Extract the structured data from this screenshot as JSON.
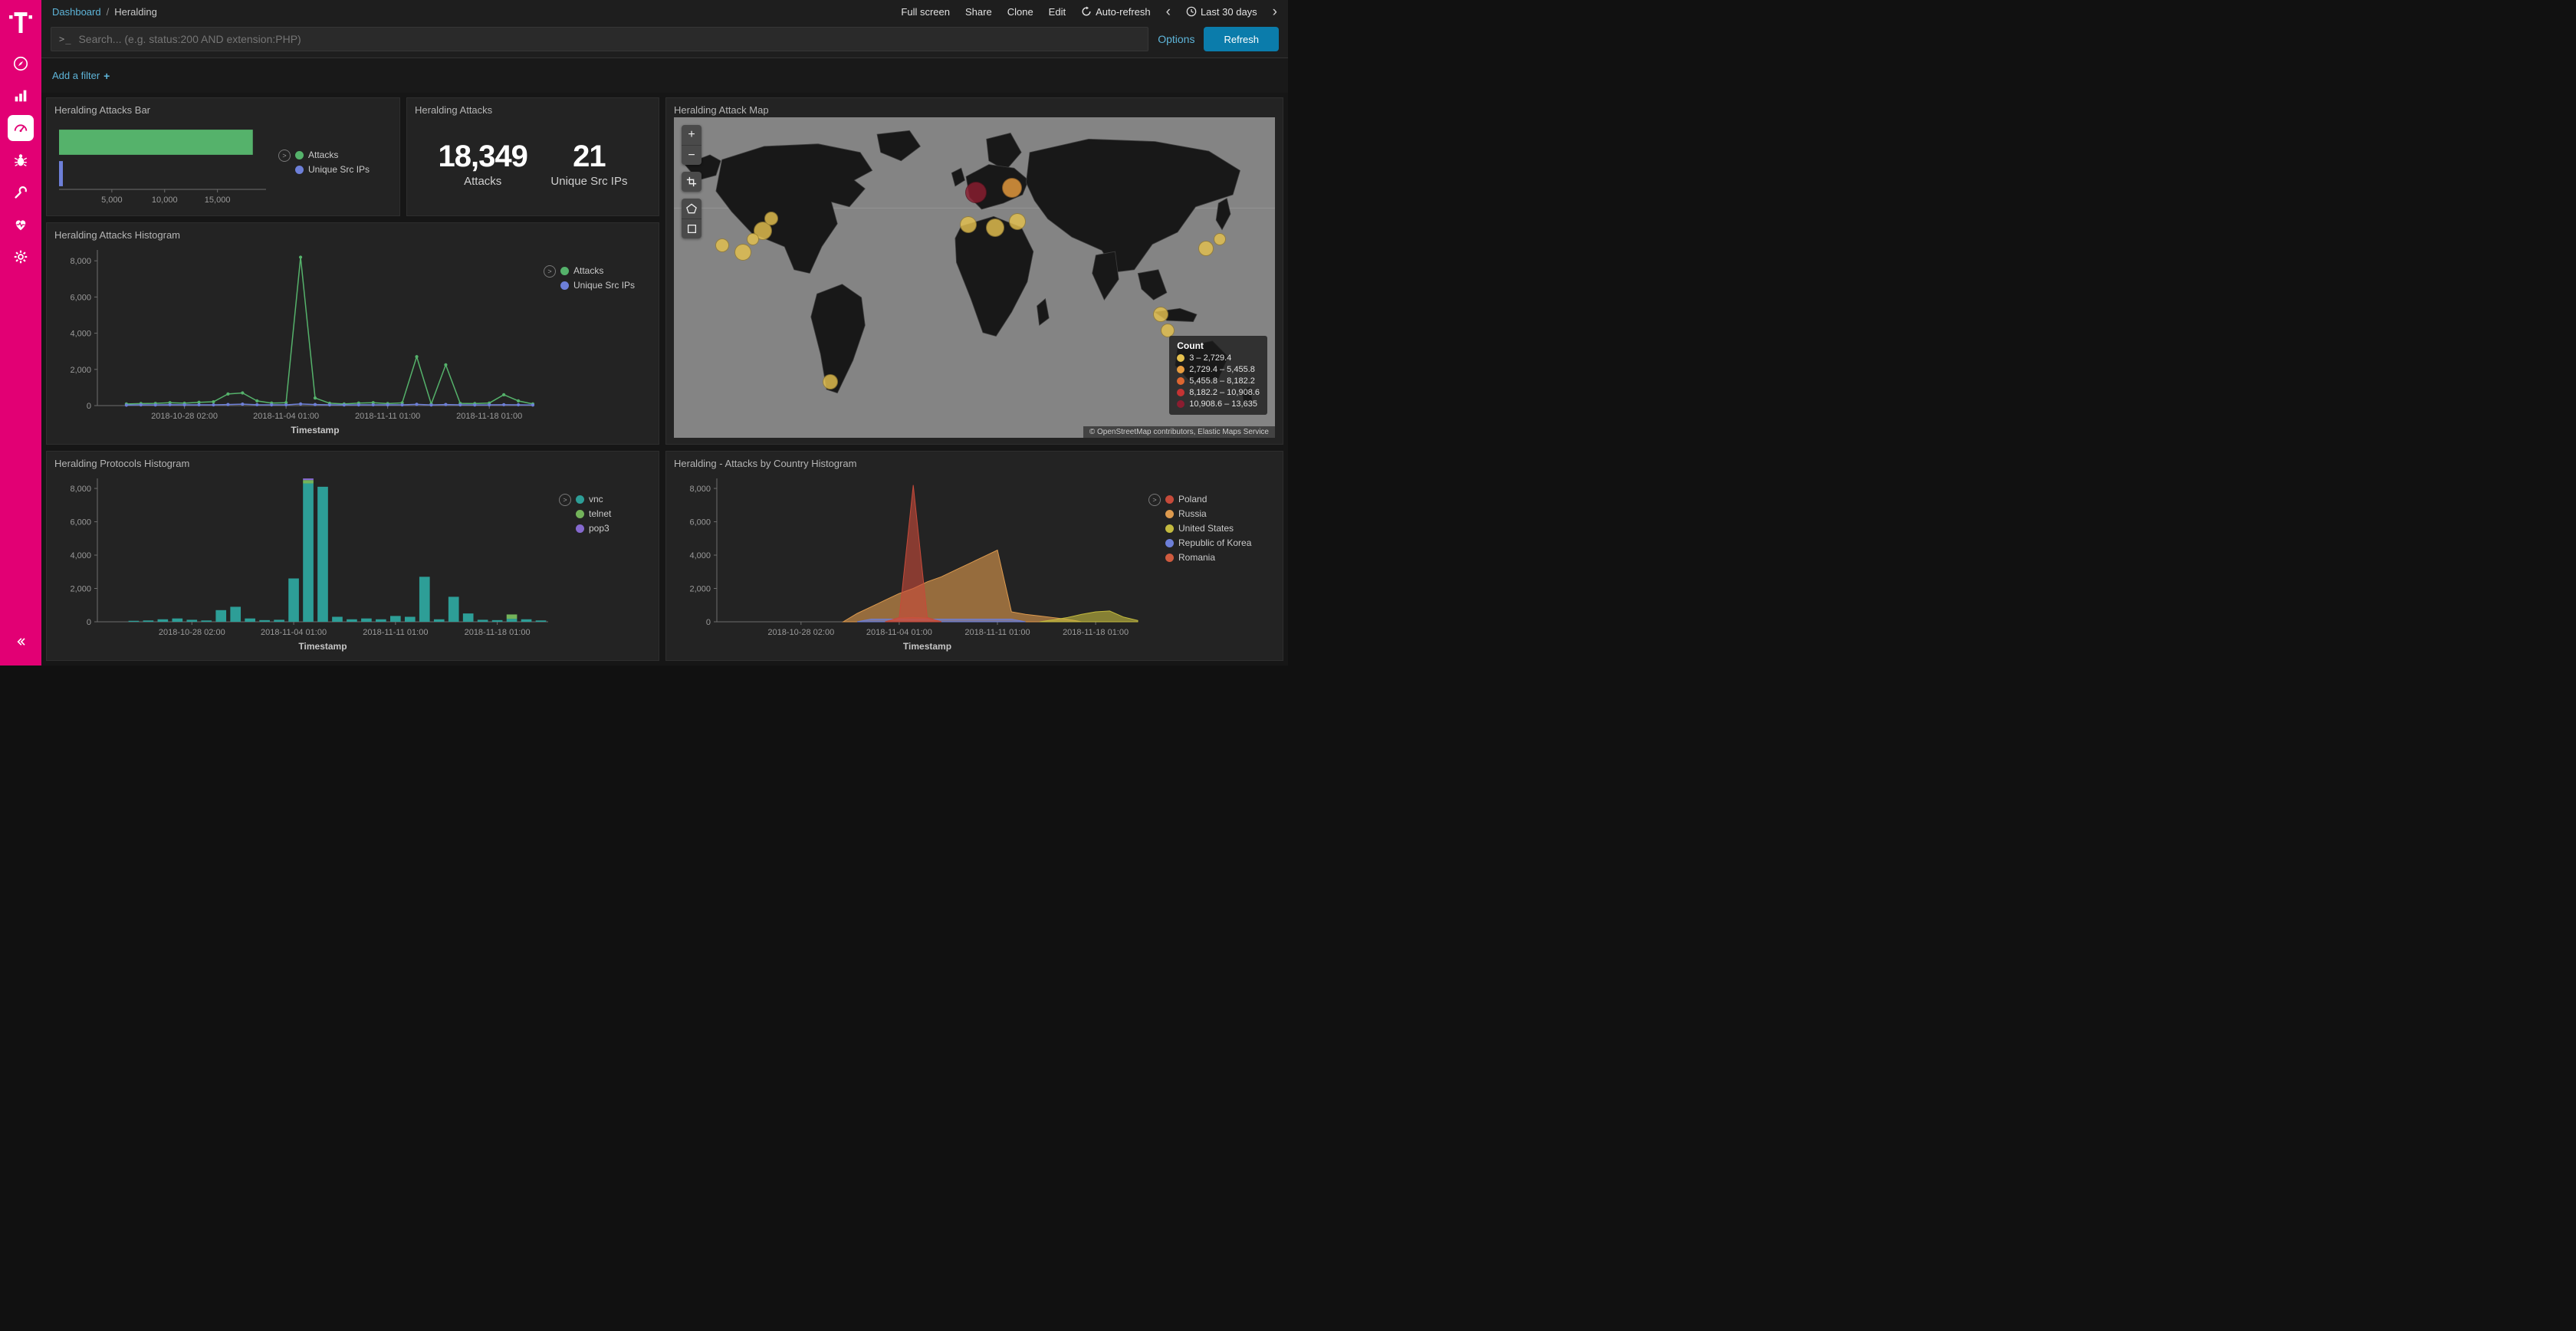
{
  "theme": {
    "brand": "#e20074",
    "link": "#5eb5d9",
    "button": "#0b7cab",
    "panel_bg": "#232323",
    "page_bg": "#161616"
  },
  "icons": {
    "prompt": ">_",
    "plus": "+",
    "minus": "−",
    "chevron_left": "‹",
    "chevron_right": "›",
    "breadcrumb_separator": "/",
    "legend_toggle": ">"
  },
  "sidebar": {
    "items": [
      "telekom-logo",
      "discover",
      "visualize",
      "dashboard",
      "t-pot",
      "dev-tools",
      "monitoring",
      "management",
      "collapse"
    ],
    "active_item": "dashboard"
  },
  "navbar": {
    "breadcrumb": {
      "root": "Dashboard",
      "current": "Heralding"
    },
    "actions": {
      "full_screen": "Full screen",
      "share": "Share",
      "clone": "Clone",
      "edit": "Edit",
      "auto_refresh": "Auto-refresh",
      "time_range": "Last 30 days"
    }
  },
  "search_bar": {
    "placeholder": "Search... (e.g. status:200 AND extension:PHP)",
    "options": "Options",
    "refresh": "Refresh"
  },
  "filter_bar": {
    "add_filter": "Add a filter"
  },
  "panels": {
    "attacks_bar": {
      "title": "Heralding Attacks Bar"
    },
    "attacks_metric": {
      "title": "Heralding Attacks",
      "metrics": [
        {
          "value": "18,349",
          "label": "Attacks"
        },
        {
          "value": "21",
          "label": "Unique Src IPs"
        }
      ]
    },
    "attack_map": {
      "title": "Heralding Attack Map",
      "legend_title": "Count",
      "legend": [
        {
          "label": "3 – 2,729.4",
          "color": "#e5c14f"
        },
        {
          "label": "2,729.4 – 5,455.8",
          "color": "#e89c3f"
        },
        {
          "label": "5,455.8 – 8,182.2",
          "color": "#dd6631"
        },
        {
          "label": "8,182.2 – 10,908.6",
          "color": "#c43333"
        },
        {
          "label": "10,908.6 – 13,635",
          "color": "#8b1d30"
        }
      ],
      "attribution": "© OpenStreetMap contributors, Elastic Maps Service",
      "markers": [
        {
          "x": 8.0,
          "y": 40.0,
          "r": 9,
          "color": "#e5c14f"
        },
        {
          "x": 11.5,
          "y": 42.0,
          "r": 11,
          "color": "#e5c14f"
        },
        {
          "x": 14.8,
          "y": 35.5,
          "r": 12,
          "color": "#e5c14f"
        },
        {
          "x": 16.2,
          "y": 31.5,
          "r": 9,
          "color": "#e5c14f"
        },
        {
          "x": 13.2,
          "y": 38.0,
          "r": 8,
          "color": "#e5c14f"
        },
        {
          "x": 26.0,
          "y": 82.5,
          "r": 10,
          "color": "#e5c14f"
        },
        {
          "x": 49.0,
          "y": 33.5,
          "r": 11,
          "color": "#e5c14f"
        },
        {
          "x": 53.5,
          "y": 34.5,
          "r": 12,
          "color": "#e5c14f"
        },
        {
          "x": 57.2,
          "y": 32.5,
          "r": 11,
          "color": "#e5c14f"
        },
        {
          "x": 50.2,
          "y": 23.5,
          "r": 14,
          "color": "#8b1d30"
        },
        {
          "x": 56.3,
          "y": 22.0,
          "r": 13,
          "color": "#e89c3f"
        },
        {
          "x": 88.5,
          "y": 41.0,
          "r": 10,
          "color": "#e5c14f"
        },
        {
          "x": 90.8,
          "y": 38.0,
          "r": 8,
          "color": "#e5c14f"
        },
        {
          "x": 81.0,
          "y": 61.5,
          "r": 10,
          "color": "#e5c14f"
        },
        {
          "x": 82.2,
          "y": 66.5,
          "r": 9,
          "color": "#e5c14f"
        }
      ]
    },
    "attacks_histogram": {
      "title": "Heralding Attacks Histogram"
    },
    "protocols_histogram": {
      "title": "Heralding Protocols Histogram"
    },
    "country_histogram": {
      "title": "Heralding - Attacks by Country Histogram"
    }
  },
  "chart_data": [
    {
      "id": "attacks_bar",
      "type": "hbar",
      "title": "Heralding Attacks Bar",
      "categories": [
        "Attacks",
        "Unique Src IPs"
      ],
      "values": [
        18349,
        21
      ],
      "colors": [
        "#55b26b",
        "#6d7fd8"
      ],
      "xticks": [
        5000,
        10000,
        15000
      ],
      "xlim": [
        0,
        19600
      ],
      "legend": [
        {
          "label": "Attacks",
          "color": "#55b26b"
        },
        {
          "label": "Unique Src IPs",
          "color": "#6d7fd8"
        }
      ],
      "legend_position": "right"
    },
    {
      "id": "attacks_histogram",
      "type": "line",
      "title": "Heralding Attacks Histogram",
      "xlabel": "Timestamp",
      "ylim": [
        0,
        8600
      ],
      "yticks": [
        0,
        2000,
        4000,
        6000,
        8000
      ],
      "x": [
        "2018-10-22",
        "2018-10-23",
        "2018-10-24",
        "2018-10-25",
        "2018-10-26",
        "2018-10-27",
        "2018-10-28",
        "2018-10-29",
        "2018-10-30",
        "2018-10-31",
        "2018-11-01",
        "2018-11-02",
        "2018-11-03",
        "2018-11-04",
        "2018-11-05",
        "2018-11-06",
        "2018-11-07",
        "2018-11-08",
        "2018-11-09",
        "2018-11-10",
        "2018-11-11",
        "2018-11-12",
        "2018-11-13",
        "2018-11-14",
        "2018-11-15",
        "2018-11-16",
        "2018-11-17",
        "2018-11-18",
        "2018-11-19",
        "2018-11-20",
        "2018-11-21"
      ],
      "xticks": [
        {
          "index": 6,
          "label": "2018-10-28 02:00"
        },
        {
          "index": 13,
          "label": "2018-11-04 01:00"
        },
        {
          "index": 20,
          "label": "2018-11-11 01:00"
        },
        {
          "index": 27,
          "label": "2018-11-18 01:00"
        }
      ],
      "series": [
        {
          "name": "Attacks",
          "color": "#55b26b",
          "values": [
            null,
            null,
            90,
            110,
            120,
            160,
            130,
            180,
            210,
            640,
            700,
            260,
            140,
            160,
            8200,
            420,
            130,
            90,
            140,
            160,
            110,
            150,
            2700,
            90,
            2250,
            120,
            110,
            140,
            600,
            260,
            90
          ]
        },
        {
          "name": "Unique Src IPs",
          "color": "#6d7fd8",
          "values": [
            null,
            null,
            25,
            40,
            35,
            50,
            40,
            45,
            40,
            60,
            80,
            50,
            40,
            45,
            90,
            60,
            40,
            35,
            40,
            45,
            40,
            40,
            70,
            35,
            60,
            40,
            35,
            40,
            50,
            45,
            30
          ]
        }
      ],
      "legend": [
        {
          "label": "Attacks",
          "color": "#55b26b"
        },
        {
          "label": "Unique Src IPs",
          "color": "#6d7fd8"
        }
      ],
      "legend_position": "right"
    },
    {
      "id": "protocols_histogram",
      "type": "bar",
      "title": "Heralding Protocols Histogram",
      "xlabel": "Timestamp",
      "ylim": [
        0,
        8600
      ],
      "yticks": [
        0,
        2000,
        4000,
        6000,
        8000
      ],
      "x": [
        "2018-10-22",
        "2018-10-23",
        "2018-10-24",
        "2018-10-25",
        "2018-10-26",
        "2018-10-27",
        "2018-10-28",
        "2018-10-29",
        "2018-10-30",
        "2018-10-31",
        "2018-11-01",
        "2018-11-02",
        "2018-11-03",
        "2018-11-04",
        "2018-11-05",
        "2018-11-06",
        "2018-11-07",
        "2018-11-08",
        "2018-11-09",
        "2018-11-10",
        "2018-11-11",
        "2018-11-12",
        "2018-11-13",
        "2018-11-14",
        "2018-11-15",
        "2018-11-16",
        "2018-11-17",
        "2018-11-18",
        "2018-11-19",
        "2018-11-20",
        "2018-11-21"
      ],
      "xticks": [
        {
          "index": 6,
          "label": "2018-10-28 02:00"
        },
        {
          "index": 13,
          "label": "2018-11-04 01:00"
        },
        {
          "index": 20,
          "label": "2018-11-11 01:00"
        },
        {
          "index": 27,
          "label": "2018-11-18 01:00"
        }
      ],
      "series": [
        {
          "name": "vnc",
          "color": "#2d9e97",
          "values": [
            0,
            0,
            60,
            80,
            150,
            200,
            120,
            80,
            700,
            900,
            200,
            100,
            120,
            2600,
            8300,
            8100,
            300,
            150,
            200,
            150,
            350,
            300,
            2700,
            150,
            1500,
            500,
            120,
            100,
            180,
            150,
            80
          ]
        },
        {
          "name": "telnet",
          "color": "#73b35a",
          "values": [
            0,
            0,
            0,
            0,
            0,
            0,
            0,
            0,
            0,
            0,
            0,
            0,
            0,
            0,
            200,
            0,
            0,
            0,
            0,
            0,
            0,
            0,
            0,
            0,
            0,
            0,
            0,
            0,
            260,
            0,
            0
          ]
        },
        {
          "name": "pop3",
          "color": "#8569ce",
          "values": [
            0,
            0,
            0,
            0,
            0,
            0,
            0,
            0,
            0,
            0,
            0,
            0,
            0,
            0,
            100,
            0,
            0,
            0,
            0,
            0,
            0,
            0,
            0,
            0,
            0,
            0,
            0,
            0,
            0,
            0,
            0
          ]
        }
      ],
      "legend": [
        {
          "label": "vnc",
          "color": "#2d9e97"
        },
        {
          "label": "telnet",
          "color": "#73b35a"
        },
        {
          "label": "pop3",
          "color": "#8569ce"
        }
      ],
      "legend_position": "right"
    },
    {
      "id": "country_histogram",
      "type": "area",
      "title": "Heralding - Attacks by Country Histogram",
      "xlabel": "Timestamp",
      "ylim": [
        0,
        8600
      ],
      "yticks": [
        0,
        2000,
        4000,
        6000,
        8000
      ],
      "x": [
        "2018-10-22",
        "2018-10-23",
        "2018-10-24",
        "2018-10-25",
        "2018-10-26",
        "2018-10-27",
        "2018-10-28",
        "2018-10-29",
        "2018-10-30",
        "2018-10-31",
        "2018-11-01",
        "2018-11-02",
        "2018-11-03",
        "2018-11-04",
        "2018-11-05",
        "2018-11-06",
        "2018-11-07",
        "2018-11-08",
        "2018-11-09",
        "2018-11-10",
        "2018-11-11",
        "2018-11-12",
        "2018-11-13",
        "2018-11-14",
        "2018-11-15",
        "2018-11-16",
        "2018-11-17",
        "2018-11-18",
        "2018-11-19",
        "2018-11-20",
        "2018-11-21"
      ],
      "xticks": [
        {
          "index": 6,
          "label": "2018-10-28 02:00"
        },
        {
          "index": 13,
          "label": "2018-11-04 01:00"
        },
        {
          "index": 20,
          "label": "2018-11-11 01:00"
        },
        {
          "index": 27,
          "label": "2018-11-18 01:00"
        }
      ],
      "series": [
        {
          "name": "Russia",
          "color": "#dd9a4e",
          "values": [
            0,
            0,
            0,
            0,
            0,
            0,
            0,
            0,
            0,
            0,
            500,
            900,
            1300,
            1700,
            2000,
            2400,
            2700,
            3100,
            3500,
            3900,
            4300,
            600,
            450,
            350,
            250,
            150,
            0,
            0,
            0,
            0,
            0
          ]
        },
        {
          "name": "United States",
          "color": "#c3ba3f",
          "values": [
            0,
            0,
            0,
            0,
            0,
            0,
            0,
            0,
            0,
            0,
            0,
            0,
            0,
            0,
            0,
            0,
            0,
            0,
            0,
            0,
            0,
            0,
            0,
            0,
            120,
            260,
            450,
            600,
            650,
            280,
            80
          ]
        },
        {
          "name": "Republic of Korea",
          "color": "#6d7fd8",
          "values": [
            0,
            0,
            0,
            0,
            0,
            0,
            0,
            0,
            0,
            0,
            0,
            160,
            160,
            160,
            160,
            160,
            160,
            160,
            160,
            160,
            160,
            160,
            0,
            0,
            0,
            0,
            0,
            0,
            0,
            0,
            0
          ]
        },
        {
          "name": "Romania",
          "color": "#cf5b3f",
          "values": [
            0,
            0,
            0,
            0,
            0,
            0,
            0,
            0,
            0,
            0,
            0,
            0,
            0,
            220,
            260,
            220,
            0,
            0,
            0,
            0,
            0,
            0,
            0,
            0,
            0,
            0,
            0,
            0,
            0,
            0,
            0
          ]
        },
        {
          "name": "Poland",
          "color": "#c64a3a",
          "values": [
            0,
            0,
            0,
            0,
            0,
            0,
            0,
            0,
            0,
            0,
            0,
            0,
            0,
            260,
            8200,
            260,
            0,
            0,
            0,
            0,
            0,
            0,
            0,
            0,
            0,
            0,
            0,
            0,
            0,
            0,
            0
          ]
        }
      ],
      "legend": [
        {
          "label": "Poland",
          "color": "#c64a3a"
        },
        {
          "label": "Russia",
          "color": "#dd9a4e"
        },
        {
          "label": "United States",
          "color": "#c3ba3f"
        },
        {
          "label": "Republic of Korea",
          "color": "#6d7fd8"
        },
        {
          "label": "Romania",
          "color": "#cf5b3f"
        }
      ],
      "legend_position": "right"
    }
  ]
}
